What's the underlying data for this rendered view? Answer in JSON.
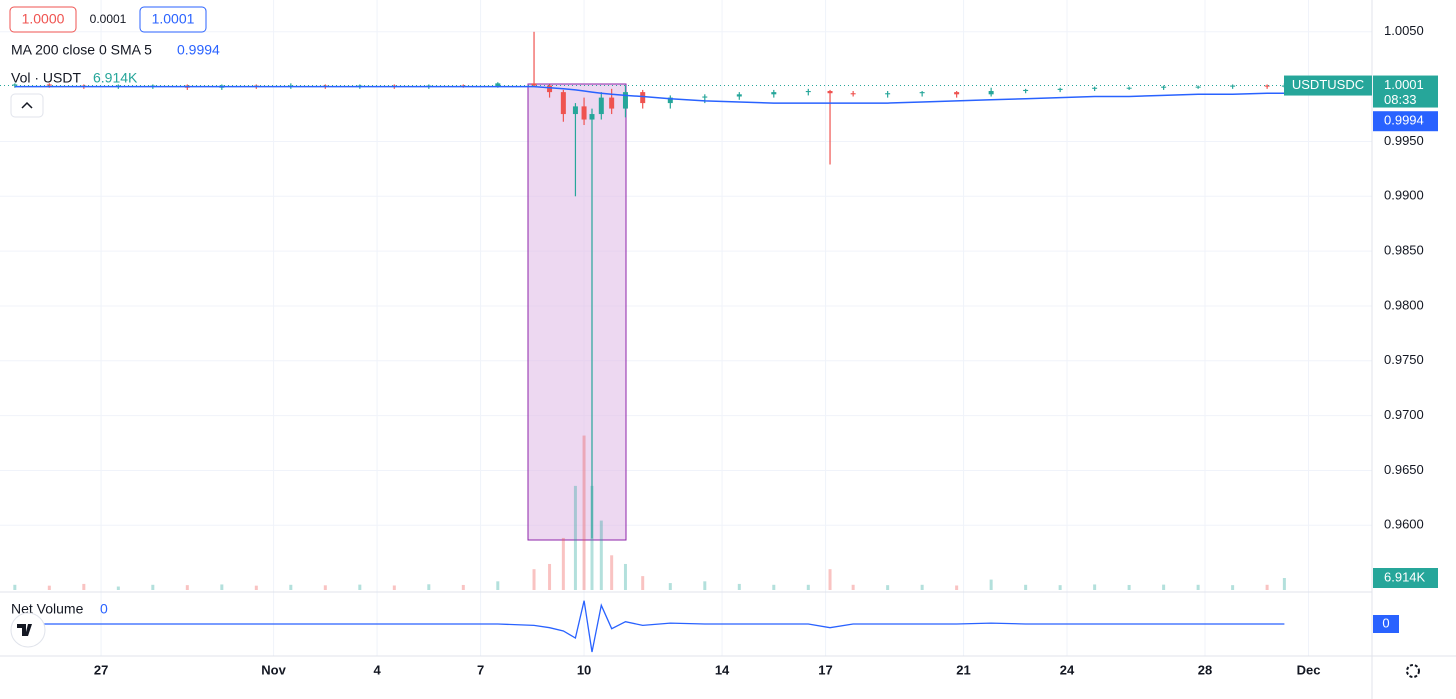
{
  "header": {
    "bid": "1.0000",
    "spread": "0.0001",
    "ask": "1.0001",
    "ma_label": "MA 200 close 0 SMA 5",
    "ma_value": "0.9994",
    "vol_label": "Vol · USDT",
    "vol_value": "6.914K",
    "net_label": "Net Volume",
    "net_value": "0"
  },
  "chart_data": {
    "type": "candlestick",
    "symbol": "USDTUSDC",
    "x": [
      24.5,
      25.5,
      26.5,
      27.5,
      28.5,
      29.5,
      30.5,
      31.5,
      32.5,
      33.5,
      34.5,
      35.5,
      36.5,
      37.5,
      38.5,
      39.55,
      40.0,
      40.4,
      40.75,
      41.0,
      41.23,
      41.5,
      41.8,
      42.2,
      42.7,
      43.5,
      44.5,
      45.5,
      46.5,
      47.5,
      48.13,
      48.8,
      49.8,
      50.8,
      51.8,
      52.8,
      53.8,
      54.8,
      55.8,
      56.8,
      57.8,
      58.8,
      59.8,
      60.8,
      61.3
    ],
    "open": [
      1.0001,
      1.0002,
      1.0001,
      1.0,
      1.0001,
      1.0001,
      0.9999,
      1.0001,
      1.0,
      1.0001,
      1.0,
      1.0001,
      1.0,
      1.0001,
      1.0,
      1.0003,
      1.0001,
      0.9995,
      0.9975,
      0.9982,
      0.997,
      0.9975,
      0.999,
      0.998,
      0.9995,
      0.9985,
      0.999,
      0.9991,
      0.9993,
      0.9995,
      0.9996,
      0.9994,
      0.9993,
      0.9994,
      0.9995,
      0.9993,
      0.9996,
      0.9997,
      0.9998,
      0.9999,
      0.9999,
      1.0,
      1.0,
      1.0001,
      1.0
    ],
    "high": [
      1.0003,
      1.0003,
      1.0002,
      1.0002,
      1.0002,
      1.0002,
      1.0002,
      1.0002,
      1.0003,
      1.0002,
      1.0002,
      1.0002,
      1.0002,
      1.0002,
      1.0004,
      1.005,
      1.0002,
      0.9997,
      0.9985,
      0.999,
      0.998,
      0.9995,
      0.9998,
      1.0001,
      0.9997,
      0.9992,
      0.9993,
      0.9995,
      0.9997,
      0.9998,
      0.9997,
      0.9996,
      0.9996,
      0.9996,
      0.9996,
      0.9999,
      0.9998,
      0.9999,
      1.0,
      1.0,
      1.0001,
      1.0001,
      1.0002,
      1.0002,
      1.0003
    ],
    "low": [
      0.9999,
      0.9999,
      0.9998,
      0.9998,
      0.9998,
      0.9997,
      0.9997,
      0.9998,
      0.9998,
      0.9998,
      0.9998,
      0.9998,
      0.9998,
      0.9999,
      0.9999,
      1.0,
      0.999,
      0.9968,
      0.99,
      0.9965,
      0.9588,
      0.997,
      0.9975,
      0.9972,
      0.998,
      0.998,
      0.9985,
      0.9988,
      0.999,
      0.9992,
      0.9929,
      0.9991,
      0.999,
      0.9991,
      0.999,
      0.9991,
      0.9994,
      0.9995,
      0.9996,
      0.9997,
      0.9997,
      0.9998,
      0.9998,
      0.9998,
      0.9999
    ],
    "close": [
      1.0002,
      1.0001,
      1.0,
      1.0001,
      1.0001,
      0.9999,
      1.0001,
      1.0,
      1.0001,
      1.0,
      1.0001,
      1.0,
      1.0001,
      1.0,
      1.0003,
      1.0001,
      0.9995,
      0.9975,
      0.9982,
      0.997,
      0.9975,
      0.999,
      0.998,
      0.9995,
      0.9985,
      0.999,
      0.9991,
      0.9993,
      0.9995,
      0.9996,
      0.9994,
      0.9993,
      0.9994,
      0.9995,
      0.9993,
      0.9996,
      0.9997,
      0.9998,
      0.9999,
      0.9999,
      1.0,
      1.0,
      1.0001,
      1.0,
      1.0001
    ],
    "colors": {
      "up": "#26a69a",
      "down": "#ef5350"
    },
    "ma": {
      "color": "#2962ff",
      "values": [
        1.0,
        1.0,
        1.0,
        1.0,
        1.0,
        1.0,
        1.0,
        1.0,
        1.0,
        1.0,
        1.0,
        1.0,
        1.0,
        1.0,
        1.0,
        1.0,
        0.9999,
        0.9998,
        0.9997,
        0.9996,
        0.9995,
        0.9994,
        0.9993,
        0.9992,
        0.9991,
        0.9989,
        0.9987,
        0.9986,
        0.9985,
        0.9985,
        0.9985,
        0.9985,
        0.9985,
        0.9986,
        0.9987,
        0.9988,
        0.9989,
        0.999,
        0.9991,
        0.9991,
        0.9992,
        0.9993,
        0.9993,
        0.9994,
        0.9994
      ]
    },
    "volume": [
      3000,
      2500,
      3500,
      2000,
      3000,
      2800,
      3200,
      2500,
      3000,
      2700,
      3100,
      2600,
      3300,
      2900,
      5000,
      12000,
      15000,
      30000,
      60000,
      89000,
      60000,
      40000,
      20000,
      15000,
      8000,
      4000,
      5000,
      3500,
      3000,
      3000,
      12000,
      3000,
      2800,
      3000,
      2600,
      6000,
      3000,
      2800,
      3200,
      2900,
      3100,
      3000,
      2800,
      3000,
      6914
    ],
    "volume_lim": [
      0,
      340000
    ],
    "net_volume": [
      0,
      0,
      0,
      0,
      0,
      0,
      0,
      0,
      0,
      0,
      0,
      0,
      0,
      0,
      0,
      -3000,
      -8000,
      -15000,
      -30000,
      50000,
      -60000,
      40000,
      -10000,
      5000,
      -3000,
      2000,
      0,
      0,
      0,
      0,
      -8000,
      0,
      0,
      0,
      0,
      2000,
      0,
      0,
      0,
      0,
      0,
      0,
      0,
      0,
      0
    ],
    "net_volume_lim": [
      -60000,
      60000
    ],
    "xlim": [
      24.07,
      63.84
    ],
    "xticks": [
      27,
      {
        "value": 32,
        "label": "Nov"
      },
      {
        "value": 35,
        "label": "4"
      },
      {
        "value": 38,
        "label": "7"
      },
      {
        "value": 41,
        "label": "10"
      },
      {
        "value": 45,
        "label": "14"
      },
      {
        "value": 48,
        "label": "17"
      },
      {
        "value": 52,
        "label": "21"
      },
      {
        "value": 55,
        "label": "24"
      },
      {
        "value": 59,
        "label": "28"
      },
      {
        "value": 62,
        "label": "Dec"
      }
    ],
    "ylim": [
      0.9541,
      1.0079
    ],
    "yticks": [
      {
        "value": 1.005,
        "label": "1.0050"
      },
      {
        "value": 0.995,
        "label": "0.9950"
      },
      {
        "value": 0.99,
        "label": "0.9900"
      },
      {
        "value": 0.985,
        "label": "0.9850"
      },
      {
        "value": 0.98,
        "label": "0.9800"
      },
      {
        "value": 0.975,
        "label": "0.9750"
      },
      {
        "value": 0.97,
        "label": "0.9700"
      },
      {
        "value": 0.965,
        "label": "0.9650"
      },
      {
        "value": 0.96,
        "label": "0.9600"
      }
    ],
    "grid": true,
    "last_price": {
      "label": "1.0001",
      "countdown": "08:33"
    },
    "ma_badge": "0.9994",
    "volume_badge": "6.914K",
    "net_volume_badge": "0"
  }
}
